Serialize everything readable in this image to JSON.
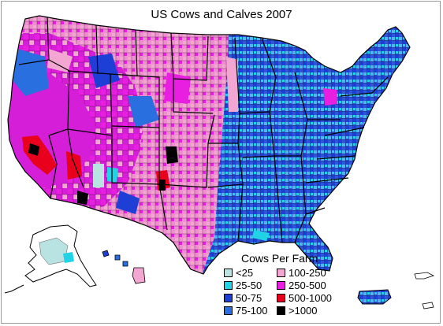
{
  "title": "US Cows and Calves 2007",
  "legend": {
    "title": "Cows Per Farm",
    "items": [
      {
        "label": "<25",
        "color": "#b9e3e3"
      },
      {
        "label": "25-50",
        "color": "#22d3e8"
      },
      {
        "label": "50-75",
        "color": "#1e3fd6"
      },
      {
        "label": "75-100",
        "color": "#2a6fe0"
      },
      {
        "label": "100-250",
        "color": "#f4a6d2"
      },
      {
        "label": "250-500",
        "color": "#e81ee0"
      },
      {
        "label": "500-1000",
        "color": "#e8001c"
      },
      {
        "label": ">1000",
        "color": "#000000"
      }
    ]
  },
  "colors": {
    "east_blue": "#2f55d8",
    "east_cyan": "#4fb7f0",
    "plains_pink": "#ef8fcf",
    "west_magenta": "#d41ed8",
    "border": "#000000"
  }
}
